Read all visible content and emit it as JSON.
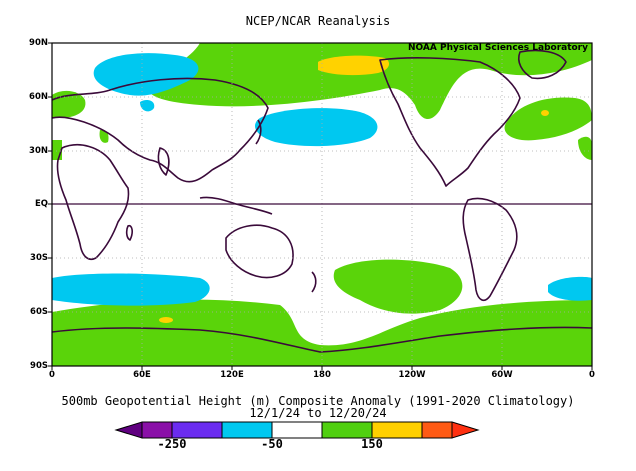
{
  "title": "NCEP/NCAR Reanalysis",
  "credit": "NOAA Physical Sciences Laboratory",
  "caption_line1": "500mb Geopotential Height (m) Composite Anomaly (1991-2020 Climatology)",
  "caption_line2": "12/1/24  to 12/20/24",
  "lat_labels": [
    "90N",
    "60N",
    "30N",
    "EQ",
    "30S",
    "60S",
    "90S"
  ],
  "lon_labels": [
    "0",
    "60E",
    "120E",
    "180",
    "120W",
    "60W",
    "0"
  ],
  "colorbar": {
    "labels": [
      "-250",
      "-50",
      "150"
    ],
    "colors": [
      "#8a0fa8",
      "#6b2cf0",
      "#00c8f0",
      "#ffffff",
      "#50d010",
      "#ffd000",
      "#ff5a14"
    ],
    "left_arrow_color": "#600080",
    "right_arrow_color": "#ff3010"
  },
  "colors": {
    "positive_anomaly": "#5ad40a",
    "negative_anomaly": "#00c8f0",
    "strong_positive": "#ffd200",
    "coastline": "#3a0a3a"
  }
}
